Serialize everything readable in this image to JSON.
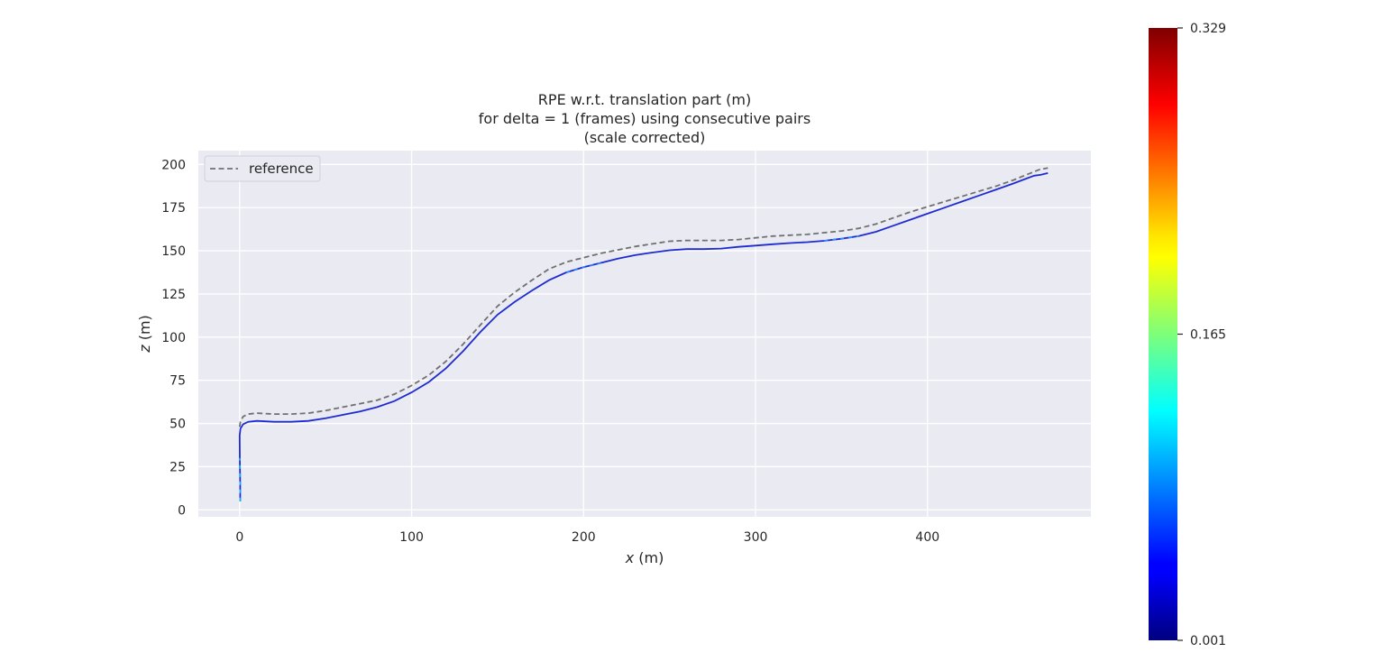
{
  "chart_data": {
    "type": "line",
    "title_lines": [
      "RPE w.r.t. translation part (m)",
      "for delta = 1 (frames) using consecutive pairs",
      "(scale corrected)"
    ],
    "xlabel_var": "x",
    "xlabel_unit": " (m)",
    "ylabel_var": "z",
    "ylabel_unit": " (m)",
    "xlim": [
      -24,
      495
    ],
    "ylim": [
      -4,
      208
    ],
    "xticks": [
      0,
      100,
      200,
      300,
      400
    ],
    "yticks": [
      0,
      25,
      50,
      75,
      100,
      125,
      150,
      175,
      200
    ],
    "grid": true,
    "legend": {
      "position": "top-left",
      "entries": [
        {
          "label": "reference",
          "style": "dashed",
          "color": "#707070"
        }
      ]
    },
    "series": [
      {
        "name": "reference",
        "style": "dashed",
        "color": "#707070",
        "x": [
          0,
          0.5,
          2,
          5,
          10,
          20,
          30,
          40,
          50,
          60,
          70,
          80,
          90,
          100,
          110,
          120,
          130,
          140,
          150,
          160,
          170,
          180,
          190,
          200,
          210,
          220,
          230,
          240,
          250,
          260,
          270,
          280,
          290,
          300,
          310,
          320,
          330,
          340,
          350,
          360,
          370,
          380,
          390,
          400,
          410,
          420,
          430,
          440,
          450,
          455,
          460,
          465,
          470
        ],
        "y": [
          48,
          51,
          54,
          55.5,
          56,
          55.5,
          55.5,
          56,
          57.5,
          59.5,
          61.5,
          63.5,
          67,
          72,
          78,
          86,
          96,
          107,
          118,
          126,
          133,
          139.5,
          143.5,
          146,
          148.5,
          150.5,
          152.5,
          154,
          155.5,
          156,
          156,
          156,
          156.5,
          157.5,
          158.5,
          159,
          159.5,
          160.5,
          161.5,
          163,
          165.5,
          169,
          172.5,
          175.5,
          178.5,
          181.5,
          184.5,
          187.5,
          191,
          193,
          195,
          197,
          198
        ]
      },
      {
        "name": "estimate",
        "style": "colormap",
        "color": "#1e2bd2",
        "x": [
          0.3,
          0.3,
          0.1,
          0,
          0.5,
          2,
          5,
          10,
          20,
          30,
          40,
          50,
          60,
          70,
          80,
          90,
          100,
          110,
          120,
          130,
          140,
          150,
          160,
          170,
          180,
          190,
          200,
          210,
          220,
          230,
          240,
          250,
          260,
          270,
          280,
          290,
          300,
          310,
          320,
          330,
          340,
          350,
          360,
          370,
          380,
          390,
          400,
          410,
          420,
          430,
          440,
          450,
          458,
          462,
          466,
          470
        ],
        "y": [
          5,
          15,
          30,
          43,
          47,
          49.5,
          51,
          51.5,
          51,
          51,
          51.5,
          53,
          55,
          57,
          59.5,
          63,
          68,
          74,
          82,
          92,
          103,
          113,
          120.5,
          127,
          133,
          137.5,
          140.5,
          143,
          145.5,
          147.5,
          149,
          150.3,
          151,
          151,
          151.3,
          152.3,
          153,
          153.8,
          154.5,
          155,
          155.8,
          157,
          158.5,
          161,
          164.5,
          168,
          171.5,
          175,
          178.5,
          182,
          185.5,
          189,
          192,
          193.5,
          194,
          195
        ]
      }
    ],
    "colorbar": {
      "min": 0.001,
      "max": 0.329,
      "ticks": [
        0.001,
        0.165,
        0.329
      ],
      "tick_labels": [
        "0.001",
        "0.165",
        "0.329"
      ],
      "colormap": "jet"
    }
  }
}
